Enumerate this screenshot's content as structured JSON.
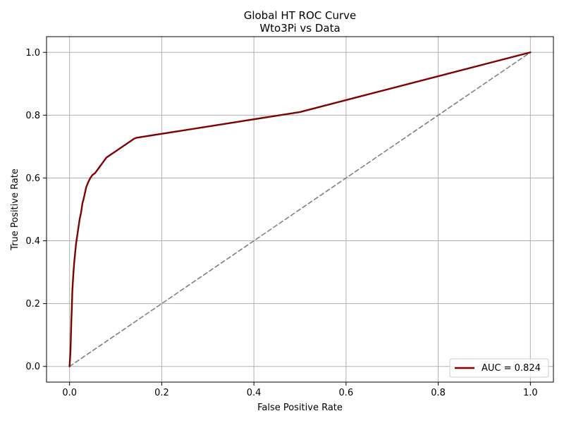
{
  "chart_data": {
    "type": "line",
    "title": "Global HT ROC Curve",
    "subtitle": "Wto3Pi vs Data",
    "xlabel": "False Positive Rate",
    "ylabel": "True Positive Rate",
    "xlim": [
      -0.05,
      1.05
    ],
    "ylim": [
      -0.05,
      1.05
    ],
    "xticks": [
      "0.0",
      "0.2",
      "0.4",
      "0.6",
      "0.8",
      "1.0"
    ],
    "yticks": [
      "0.0",
      "0.2",
      "0.4",
      "0.6",
      "0.8",
      "1.0"
    ],
    "grid": true,
    "legend_position": "lower-right",
    "series": [
      {
        "name": "AUC = 0.824",
        "color": "#800000",
        "style": "solid",
        "x": [
          0.0,
          0.002,
          0.003,
          0.004,
          0.005,
          0.006,
          0.008,
          0.01,
          0.012,
          0.014,
          0.016,
          0.018,
          0.02,
          0.022,
          0.025,
          0.028,
          0.03,
          0.033,
          0.036,
          0.04,
          0.045,
          0.05,
          0.055,
          0.06,
          0.065,
          0.07,
          0.075,
          0.08,
          0.09,
          0.1,
          0.11,
          0.12,
          0.13,
          0.14,
          0.145,
          0.5,
          1.0
        ],
        "y": [
          0.0,
          0.05,
          0.1,
          0.15,
          0.19,
          0.24,
          0.29,
          0.33,
          0.36,
          0.39,
          0.41,
          0.43,
          0.45,
          0.47,
          0.49,
          0.52,
          0.53,
          0.55,
          0.57,
          0.585,
          0.6,
          0.61,
          0.615,
          0.625,
          0.635,
          0.645,
          0.655,
          0.665,
          0.675,
          0.685,
          0.695,
          0.705,
          0.715,
          0.725,
          0.728,
          0.81,
          1.0
        ]
      },
      {
        "color": "#808080",
        "style": "dashed",
        "x": [
          0.0,
          1.0
        ],
        "y": [
          0.0,
          1.0
        ]
      }
    ]
  }
}
